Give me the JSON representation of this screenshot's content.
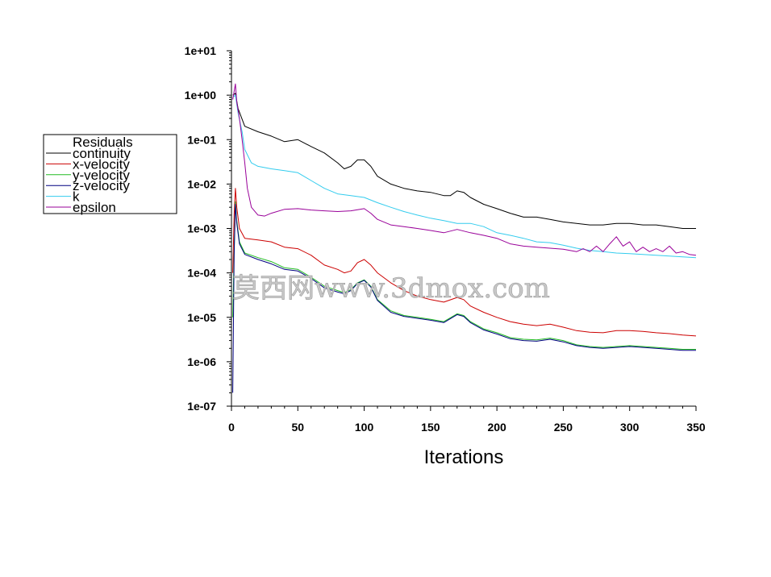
{
  "chart_data": {
    "type": "line",
    "xlabel": "Iterations",
    "ylabel": "",
    "x_ticks": [
      "0",
      "50",
      "100",
      "150",
      "200",
      "250",
      "300",
      "350"
    ],
    "y_ticks": [
      "1e-07",
      "1e-06",
      "1e-05",
      "1e-04",
      "1e-03",
      "1e-02",
      "1e-01",
      "1e+00",
      "1e+01"
    ],
    "xlim": [
      0,
      350
    ],
    "ylim": [
      1e-07,
      10
    ],
    "y_scale": "log",
    "grid": false,
    "legend_title": "Residuals",
    "legend_position": "left",
    "series": [
      {
        "name": "continuity",
        "color": "#000000",
        "points": [
          [
            1,
            1.0
          ],
          [
            3,
            1.1
          ],
          [
            5,
            0.5
          ],
          [
            10,
            0.2
          ],
          [
            20,
            0.15
          ],
          [
            30,
            0.12
          ],
          [
            40,
            0.09
          ],
          [
            50,
            0.1
          ],
          [
            60,
            0.07
          ],
          [
            70,
            0.05
          ],
          [
            80,
            0.03
          ],
          [
            85,
            0.022
          ],
          [
            90,
            0.025
          ],
          [
            95,
            0.035
          ],
          [
            100,
            0.035
          ],
          [
            105,
            0.025
          ],
          [
            110,
            0.015
          ],
          [
            120,
            0.01
          ],
          [
            130,
            0.008
          ],
          [
            140,
            0.007
          ],
          [
            150,
            0.0065
          ],
          [
            160,
            0.0055
          ],
          [
            165,
            0.0055
          ],
          [
            170,
            0.007
          ],
          [
            175,
            0.0065
          ],
          [
            180,
            0.005
          ],
          [
            190,
            0.0035
          ],
          [
            200,
            0.0028
          ],
          [
            210,
            0.0022
          ],
          [
            220,
            0.0018
          ],
          [
            230,
            0.0018
          ],
          [
            240,
            0.0016
          ],
          [
            250,
            0.0014
          ],
          [
            260,
            0.0013
          ],
          [
            270,
            0.0012
          ],
          [
            280,
            0.0012
          ],
          [
            290,
            0.0013
          ],
          [
            300,
            0.0013
          ],
          [
            310,
            0.0012
          ],
          [
            320,
            0.0012
          ],
          [
            330,
            0.0011
          ],
          [
            340,
            0.001
          ],
          [
            350,
            0.001
          ]
        ]
      },
      {
        "name": "x-velocity",
        "color": "#cc0000",
        "points": [
          [
            1,
            0.0001
          ],
          [
            2,
            0.002
          ],
          [
            3,
            0.008
          ],
          [
            4,
            0.003
          ],
          [
            6,
            0.001
          ],
          [
            10,
            0.0006
          ],
          [
            20,
            0.00055
          ],
          [
            30,
            0.0005
          ],
          [
            40,
            0.00038
          ],
          [
            50,
            0.00035
          ],
          [
            60,
            0.00025
          ],
          [
            70,
            0.00015
          ],
          [
            80,
            0.00012
          ],
          [
            85,
            0.0001
          ],
          [
            90,
            0.00011
          ],
          [
            95,
            0.00017
          ],
          [
            100,
            0.0002
          ],
          [
            105,
            0.00015
          ],
          [
            110,
            0.0001
          ],
          [
            120,
            6e-05
          ],
          [
            130,
            4e-05
          ],
          [
            140,
            3e-05
          ],
          [
            150,
            2.5e-05
          ],
          [
            160,
            2.2e-05
          ],
          [
            170,
            2.8e-05
          ],
          [
            175,
            2.5e-05
          ],
          [
            180,
            1.8e-05
          ],
          [
            190,
            1.3e-05
          ],
          [
            200,
            1e-05
          ],
          [
            210,
            8e-06
          ],
          [
            220,
            7e-06
          ],
          [
            230,
            6.5e-06
          ],
          [
            240,
            7e-06
          ],
          [
            250,
            6e-06
          ],
          [
            260,
            5e-06
          ],
          [
            270,
            4.6e-06
          ],
          [
            280,
            4.5e-06
          ],
          [
            290,
            5e-06
          ],
          [
            300,
            5e-06
          ],
          [
            310,
            4.8e-06
          ],
          [
            320,
            4.5e-06
          ],
          [
            330,
            4.3e-06
          ],
          [
            340,
            4e-06
          ],
          [
            350,
            3.8e-06
          ]
        ]
      },
      {
        "name": "y-velocity",
        "color": "#22bb22",
        "points": [
          [
            1,
            1e-05
          ],
          [
            2,
            0.0003
          ],
          [
            3,
            0.004
          ],
          [
            4,
            0.0015
          ],
          [
            6,
            0.0005
          ],
          [
            10,
            0.00028
          ],
          [
            20,
            0.00022
          ],
          [
            30,
            0.00018
          ],
          [
            40,
            0.00013
          ],
          [
            50,
            0.00012
          ],
          [
            60,
            8e-05
          ],
          [
            70,
            5e-05
          ],
          [
            80,
            4e-05
          ],
          [
            85,
            3.6e-05
          ],
          [
            90,
            4.2e-05
          ],
          [
            95,
            6e-05
          ],
          [
            100,
            7e-05
          ],
          [
            105,
            5e-05
          ],
          [
            110,
            2.5e-05
          ],
          [
            120,
            1.4e-05
          ],
          [
            130,
            1.1e-05
          ],
          [
            140,
            1e-05
          ],
          [
            150,
            9e-06
          ],
          [
            160,
            8e-06
          ],
          [
            170,
            1.2e-05
          ],
          [
            175,
            1.1e-05
          ],
          [
            180,
            8e-06
          ],
          [
            190,
            5.5e-06
          ],
          [
            200,
            4.5e-06
          ],
          [
            210,
            3.5e-06
          ],
          [
            220,
            3.2e-06
          ],
          [
            230,
            3.1e-06
          ],
          [
            240,
            3.4e-06
          ],
          [
            250,
            3e-06
          ],
          [
            260,
            2.4e-06
          ],
          [
            270,
            2.2e-06
          ],
          [
            280,
            2.1e-06
          ],
          [
            290,
            2.2e-06
          ],
          [
            300,
            2.3e-06
          ],
          [
            310,
            2.2e-06
          ],
          [
            320,
            2.1e-06
          ],
          [
            330,
            2e-06
          ],
          [
            340,
            1.9e-06
          ],
          [
            350,
            1.9e-06
          ]
        ]
      },
      {
        "name": "z-velocity",
        "color": "#000080",
        "points": [
          [
            1,
            2e-07
          ],
          [
            2,
            0.00025
          ],
          [
            3,
            0.0035
          ],
          [
            4,
            0.0013
          ],
          [
            6,
            0.00045
          ],
          [
            10,
            0.00026
          ],
          [
            20,
            0.0002
          ],
          [
            30,
            0.00016
          ],
          [
            40,
            0.00012
          ],
          [
            50,
            0.00011
          ],
          [
            60,
            7.5e-05
          ],
          [
            70,
            4.6e-05
          ],
          [
            80,
            3.7e-05
          ],
          [
            85,
            3.4e-05
          ],
          [
            90,
            4e-05
          ],
          [
            95,
            5.8e-05
          ],
          [
            100,
            6.8e-05
          ],
          [
            105,
            4.8e-05
          ],
          [
            110,
            2.4e-05
          ],
          [
            120,
            1.3e-05
          ],
          [
            130,
            1.05e-05
          ],
          [
            140,
            9.5e-06
          ],
          [
            150,
            8.6e-06
          ],
          [
            160,
            7.6e-06
          ],
          [
            170,
            1.15e-05
          ],
          [
            175,
            1.05e-05
          ],
          [
            180,
            7.6e-06
          ],
          [
            190,
            5.2e-06
          ],
          [
            200,
            4.2e-06
          ],
          [
            210,
            3.3e-06
          ],
          [
            220,
            3e-06
          ],
          [
            230,
            2.9e-06
          ],
          [
            240,
            3.2e-06
          ],
          [
            250,
            2.8e-06
          ],
          [
            260,
            2.3e-06
          ],
          [
            270,
            2.1e-06
          ],
          [
            280,
            2e-06
          ],
          [
            290,
            2.1e-06
          ],
          [
            300,
            2.2e-06
          ],
          [
            310,
            2.1e-06
          ],
          [
            320,
            2e-06
          ],
          [
            330,
            1.9e-06
          ],
          [
            340,
            1.8e-06
          ],
          [
            350,
            1.8e-06
          ]
        ]
      },
      {
        "name": "k",
        "color": "#33ccee",
        "points": [
          [
            1,
            0.9
          ],
          [
            3,
            1.0
          ],
          [
            5,
            0.4
          ],
          [
            8,
            0.15
          ],
          [
            10,
            0.06
          ],
          [
            15,
            0.03
          ],
          [
            20,
            0.025
          ],
          [
            30,
            0.022
          ],
          [
            40,
            0.02
          ],
          [
            50,
            0.018
          ],
          [
            60,
            0.012
          ],
          [
            70,
            0.008
          ],
          [
            80,
            0.006
          ],
          [
            90,
            0.0055
          ],
          [
            100,
            0.005
          ],
          [
            110,
            0.0038
          ],
          [
            120,
            0.003
          ],
          [
            130,
            0.0024
          ],
          [
            140,
            0.002
          ],
          [
            150,
            0.0017
          ],
          [
            160,
            0.0015
          ],
          [
            170,
            0.0013
          ],
          [
            180,
            0.0013
          ],
          [
            190,
            0.0011
          ],
          [
            200,
            0.0008
          ],
          [
            210,
            0.0007
          ],
          [
            220,
            0.0006
          ],
          [
            230,
            0.0005
          ],
          [
            240,
            0.00048
          ],
          [
            250,
            0.00042
          ],
          [
            260,
            0.00036
          ],
          [
            270,
            0.00032
          ],
          [
            280,
            0.0003
          ],
          [
            290,
            0.00028
          ],
          [
            300,
            0.00027
          ],
          [
            310,
            0.00026
          ],
          [
            320,
            0.00025
          ],
          [
            330,
            0.00024
          ],
          [
            340,
            0.00023
          ],
          [
            350,
            0.00022
          ]
        ]
      },
      {
        "name": "epsilon",
        "color": "#990099",
        "points": [
          [
            1,
            0.8
          ],
          [
            3,
            1.8
          ],
          [
            4,
            0.7
          ],
          [
            6,
            0.3
          ],
          [
            8,
            0.1
          ],
          [
            10,
            0.03
          ],
          [
            12,
            0.008
          ],
          [
            15,
            0.003
          ],
          [
            20,
            0.002
          ],
          [
            25,
            0.0019
          ],
          [
            30,
            0.0022
          ],
          [
            40,
            0.0027
          ],
          [
            50,
            0.0028
          ],
          [
            60,
            0.0026
          ],
          [
            70,
            0.0025
          ],
          [
            80,
            0.0024
          ],
          [
            90,
            0.0025
          ],
          [
            100,
            0.0028
          ],
          [
            105,
            0.0022
          ],
          [
            110,
            0.0016
          ],
          [
            120,
            0.0012
          ],
          [
            130,
            0.0011
          ],
          [
            140,
            0.001
          ],
          [
            150,
            0.0009
          ],
          [
            160,
            0.0008
          ],
          [
            170,
            0.00095
          ],
          [
            180,
            0.0008
          ],
          [
            190,
            0.0007
          ],
          [
            200,
            0.0006
          ],
          [
            210,
            0.00045
          ],
          [
            220,
            0.0004
          ],
          [
            230,
            0.00038
          ],
          [
            240,
            0.00036
          ],
          [
            250,
            0.00034
          ],
          [
            260,
            0.0003
          ],
          [
            265,
            0.00035
          ],
          [
            270,
            0.0003
          ],
          [
            275,
            0.0004
          ],
          [
            280,
            0.0003
          ],
          [
            285,
            0.00045
          ],
          [
            290,
            0.00065
          ],
          [
            295,
            0.0004
          ],
          [
            300,
            0.0005
          ],
          [
            305,
            0.0003
          ],
          [
            310,
            0.00038
          ],
          [
            315,
            0.0003
          ],
          [
            320,
            0.00035
          ],
          [
            325,
            0.0003
          ],
          [
            330,
            0.0004
          ],
          [
            335,
            0.00028
          ],
          [
            340,
            0.0003
          ],
          [
            345,
            0.00026
          ],
          [
            350,
            0.00025
          ]
        ]
      }
    ]
  },
  "watermark_text": "莫西网www.3dmox.com"
}
